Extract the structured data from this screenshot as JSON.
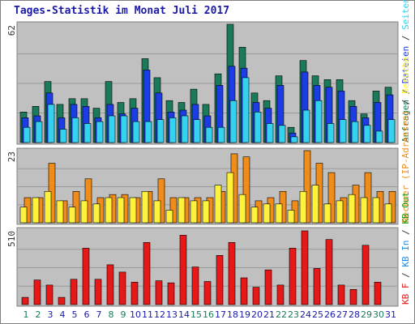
{
  "title": "Tages-Statistik im Monat Juli 2017",
  "colors": {
    "anfragen": "#1a7a5a",
    "dateien": "#1c3de6",
    "seiten": "#35d2f0",
    "rechner": "#f08c1a",
    "besuche": "#fff23c",
    "kb_in": "#1a8cf0",
    "kb_out": "#1a9c1a",
    "kb_f": "#e81818",
    "weekend_label": "#1a7a5a",
    "weekday_label": "#1a1aa8"
  },
  "chart_data": [
    {
      "type": "bar",
      "title": "Tages-Statistik im Monat Juli 2017",
      "ymax_label": "62",
      "ylim": [
        0,
        62
      ],
      "categories": [
        "1",
        "2",
        "3",
        "4",
        "5",
        "6",
        "7",
        "8",
        "9",
        "10",
        "11",
        "12",
        "13",
        "14",
        "15",
        "16",
        "17",
        "18",
        "19",
        "20",
        "21",
        "22",
        "23",
        "24",
        "25",
        "26",
        "27",
        "28",
        "29",
        "30",
        "31"
      ],
      "series": [
        {
          "name": "Anfragen",
          "values": [
            16,
            19,
            32,
            20,
            23,
            23,
            18,
            32,
            21,
            23,
            44,
            34,
            22,
            21,
            28,
            20,
            36,
            62,
            50,
            26,
            22,
            35,
            8,
            43,
            35,
            33,
            33,
            22,
            15,
            27,
            29
          ]
        },
        {
          "name": "Dateien",
          "values": [
            13,
            14,
            26,
            13,
            20,
            19,
            13,
            20,
            15,
            18,
            38,
            26,
            16,
            17,
            20,
            14,
            30,
            40,
            39,
            21,
            18,
            30,
            5,
            37,
            30,
            29,
            27,
            19,
            13,
            21,
            25
          ]
        },
        {
          "name": "Seiten",
          "values": [
            8,
            11,
            20,
            7,
            13,
            10,
            11,
            14,
            14,
            11,
            11,
            12,
            13,
            14,
            12,
            8,
            8,
            22,
            34,
            16,
            10,
            9,
            3,
            17,
            22,
            10,
            12,
            11,
            9,
            6,
            12
          ]
        }
      ]
    },
    {
      "type": "bar",
      "ymax_label": "23",
      "ylim": [
        0,
        23
      ],
      "categories": [
        "1",
        "2",
        "3",
        "4",
        "5",
        "6",
        "7",
        "8",
        "9",
        "10",
        "11",
        "12",
        "13",
        "14",
        "15",
        "16",
        "17",
        "18",
        "19",
        "20",
        "21",
        "22",
        "23",
        "24",
        "25",
        "26",
        "27",
        "28",
        "29",
        "30",
        "31"
      ],
      "series": [
        {
          "name": "Rechner (IP-Adressen)",
          "values": [
            8,
            8,
            19,
            7,
            10,
            14,
            8,
            9,
            9,
            8,
            10,
            14,
            8,
            8,
            8,
            8,
            10,
            22,
            21,
            7,
            8,
            10,
            7,
            23,
            19,
            16,
            8,
            12,
            16,
            10,
            10
          ]
        },
        {
          "name": "Besuche",
          "values": [
            5,
            8,
            10,
            7,
            5,
            7,
            6,
            8,
            8,
            8,
            10,
            7,
            4,
            8,
            7,
            7,
            12,
            16,
            9,
            5,
            6,
            6,
            4,
            10,
            12,
            6,
            7,
            9,
            8,
            8,
            6
          ]
        }
      ]
    },
    {
      "type": "bar",
      "ymax_label": "510",
      "ylim": [
        0,
        510
      ],
      "categories": [
        "1",
        "2",
        "3",
        "4",
        "5",
        "6",
        "7",
        "8",
        "9",
        "10",
        "11",
        "12",
        "13",
        "14",
        "15",
        "16",
        "17",
        "18",
        "19",
        "20",
        "21",
        "22",
        "23",
        "24",
        "25",
        "26",
        "27",
        "28",
        "29",
        "30",
        "31"
      ],
      "series": [
        {
          "name": "KB F",
          "values": [
            50,
            170,
            135,
            50,
            175,
            390,
            175,
            275,
            225,
            155,
            430,
            165,
            150,
            480,
            260,
            160,
            340,
            430,
            185,
            120,
            240,
            135,
            390,
            510,
            250,
            450,
            135,
            105,
            410,
            155,
            0
          ]
        }
      ]
    }
  ],
  "legend_right": {
    "top": [
      "Anfragen",
      "/",
      "Dateien",
      "/",
      "Seiten"
    ],
    "middle": [
      "Rechner (IP-Adressen)",
      "/",
      "Besuche"
    ],
    "bottom": [
      "KB F",
      "/",
      "KB In",
      "/",
      "KB Out"
    ]
  },
  "weekend_days": [
    "1",
    "2",
    "8",
    "9",
    "15",
    "16",
    "22",
    "23",
    "29",
    "30"
  ]
}
